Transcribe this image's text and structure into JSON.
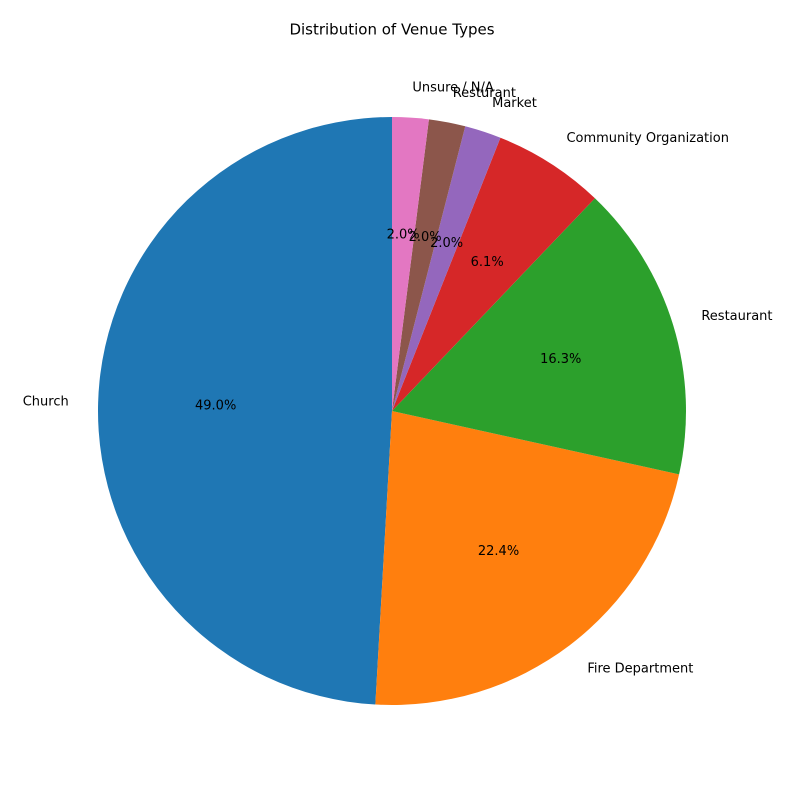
{
  "chart_data": {
    "type": "pie",
    "title": "Distribution of Venue Types",
    "categories": [
      "Church",
      "Fire Department",
      "Restaurant",
      "Community Organization",
      "Market",
      "Resturant",
      "Unsure / N/A"
    ],
    "values": [
      49.0,
      22.4,
      16.3,
      6.1,
      2.0,
      2.0,
      2.0
    ],
    "value_labels": [
      "49.0%",
      "22.4%",
      "16.3%",
      "6.1%",
      "2.0%",
      "2.0%",
      "2.0%"
    ],
    "colors": [
      "#1f77b4",
      "#ff7f0e",
      "#2ca02c",
      "#d62728",
      "#9467bd",
      "#8c564b",
      "#e377c2"
    ]
  }
}
